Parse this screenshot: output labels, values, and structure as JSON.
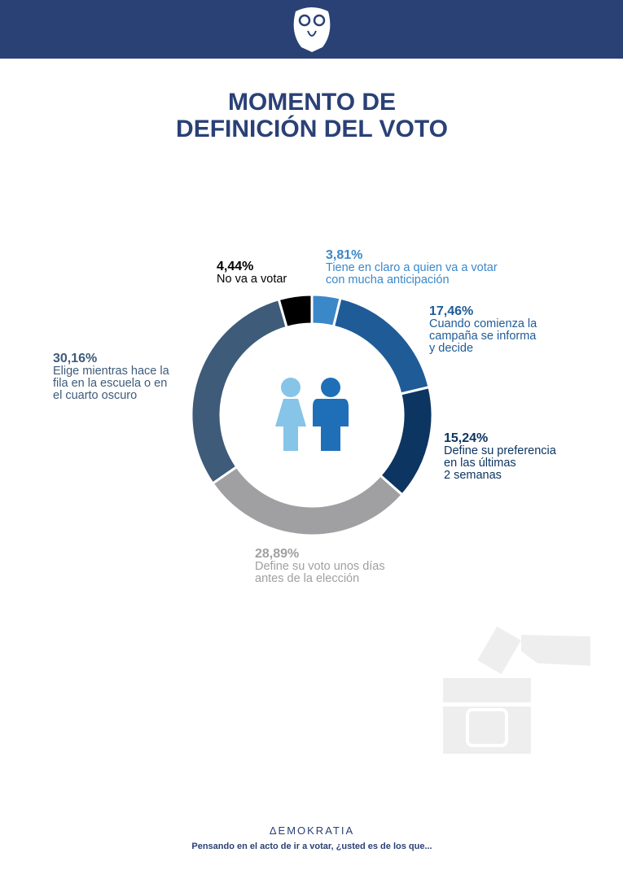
{
  "chart_data": {
    "type": "donut",
    "title": [
      "MOMENTO DE",
      "DEFINICIÓN DEL VOTO"
    ],
    "values": [
      3.81,
      17.46,
      15.24,
      28.89,
      30.16,
      4.44
    ],
    "value_labels": [
      "3,81%",
      "17,46%",
      "15,24%",
      "28,89%",
      "30,16%",
      "4,44%"
    ],
    "labels": [
      [
        "Tiene en claro a quien va a votar",
        "con mucha anticipación"
      ],
      [
        "Cuando comienza la",
        "campaña se informa",
        "y decide"
      ],
      [
        "Define su preferencia",
        "en las últimas",
        "2 semanas"
      ],
      [
        "Define su voto unos días",
        "antes de la elección"
      ],
      [
        "Elige mientras hace la",
        "fila en la escuela o en",
        "el cuarto oscuro"
      ],
      [
        "No va a votar"
      ]
    ],
    "colors": [
      "#3b88c9",
      "#1f5b97",
      "#0d3561",
      "#a0a0a2",
      "#3e5b79",
      "#000000"
    ],
    "brand": "ΔEMOKRATIA",
    "footnote": "Pensando en el acto de ir a votar, ¿usted es de los que..."
  }
}
